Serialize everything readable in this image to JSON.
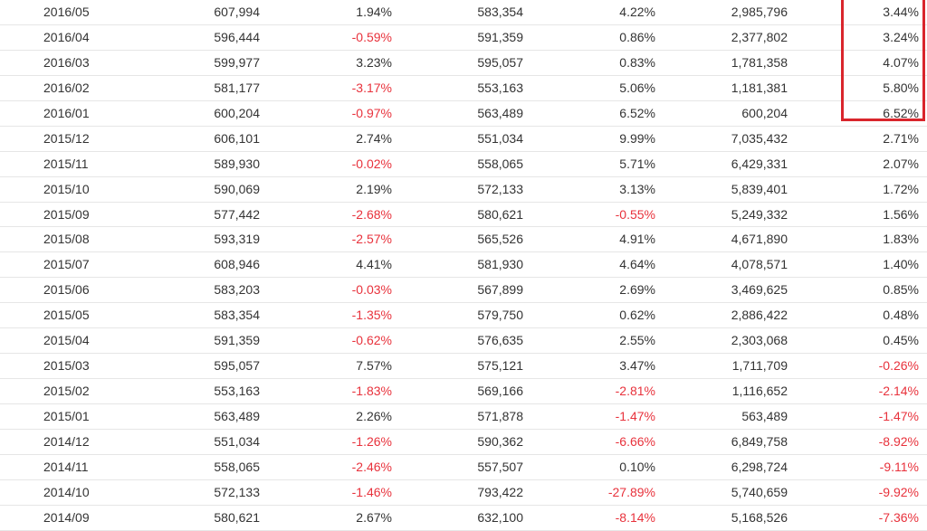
{
  "colors": {
    "negative": "#e8323c",
    "highlight": "#d9252c",
    "row_border": "#e6e6e6"
  },
  "rows": [
    [
      "2016/05",
      "607,994",
      "1.94%",
      "583,354",
      "4.22%",
      "2,985,796",
      "3.44%"
    ],
    [
      "2016/04",
      "596,444",
      "-0.59%",
      "591,359",
      "0.86%",
      "2,377,802",
      "3.24%"
    ],
    [
      "2016/03",
      "599,977",
      "3.23%",
      "595,057",
      "0.83%",
      "1,781,358",
      "4.07%"
    ],
    [
      "2016/02",
      "581,177",
      "-3.17%",
      "553,163",
      "5.06%",
      "1,181,381",
      "5.80%"
    ],
    [
      "2016/01",
      "600,204",
      "-0.97%",
      "563,489",
      "6.52%",
      "600,204",
      "6.52%"
    ],
    [
      "2015/12",
      "606,101",
      "2.74%",
      "551,034",
      "9.99%",
      "7,035,432",
      "2.71%"
    ],
    [
      "2015/11",
      "589,930",
      "-0.02%",
      "558,065",
      "5.71%",
      "6,429,331",
      "2.07%"
    ],
    [
      "2015/10",
      "590,069",
      "2.19%",
      "572,133",
      "3.13%",
      "5,839,401",
      "1.72%"
    ],
    [
      "2015/09",
      "577,442",
      "-2.68%",
      "580,621",
      "-0.55%",
      "5,249,332",
      "1.56%"
    ],
    [
      "2015/08",
      "593,319",
      "-2.57%",
      "565,526",
      "4.91%",
      "4,671,890",
      "1.83%"
    ],
    [
      "2015/07",
      "608,946",
      "4.41%",
      "581,930",
      "4.64%",
      "4,078,571",
      "1.40%"
    ],
    [
      "2015/06",
      "583,203",
      "-0.03%",
      "567,899",
      "2.69%",
      "3,469,625",
      "0.85%"
    ],
    [
      "2015/05",
      "583,354",
      "-1.35%",
      "579,750",
      "0.62%",
      "2,886,422",
      "0.48%"
    ],
    [
      "2015/04",
      "591,359",
      "-0.62%",
      "576,635",
      "2.55%",
      "2,303,068",
      "0.45%"
    ],
    [
      "2015/03",
      "595,057",
      "7.57%",
      "575,121",
      "3.47%",
      "1,711,709",
      "-0.26%"
    ],
    [
      "2015/02",
      "553,163",
      "-1.83%",
      "569,166",
      "-2.81%",
      "1,116,652",
      "-2.14%"
    ],
    [
      "2015/01",
      "563,489",
      "2.26%",
      "571,878",
      "-1.47%",
      "563,489",
      "-1.47%"
    ],
    [
      "2014/12",
      "551,034",
      "-1.26%",
      "590,362",
      "-6.66%",
      "6,849,758",
      "-8.92%"
    ],
    [
      "2014/11",
      "558,065",
      "-2.46%",
      "557,507",
      "0.10%",
      "6,298,724",
      "-9.11%"
    ],
    [
      "2014/10",
      "572,133",
      "-1.46%",
      "793,422",
      "-27.89%",
      "5,740,659",
      "-9.92%"
    ],
    [
      "2014/09",
      "580,621",
      "2.67%",
      "632,100",
      "-8.14%",
      "5,168,526",
      "-7.36%"
    ]
  ]
}
